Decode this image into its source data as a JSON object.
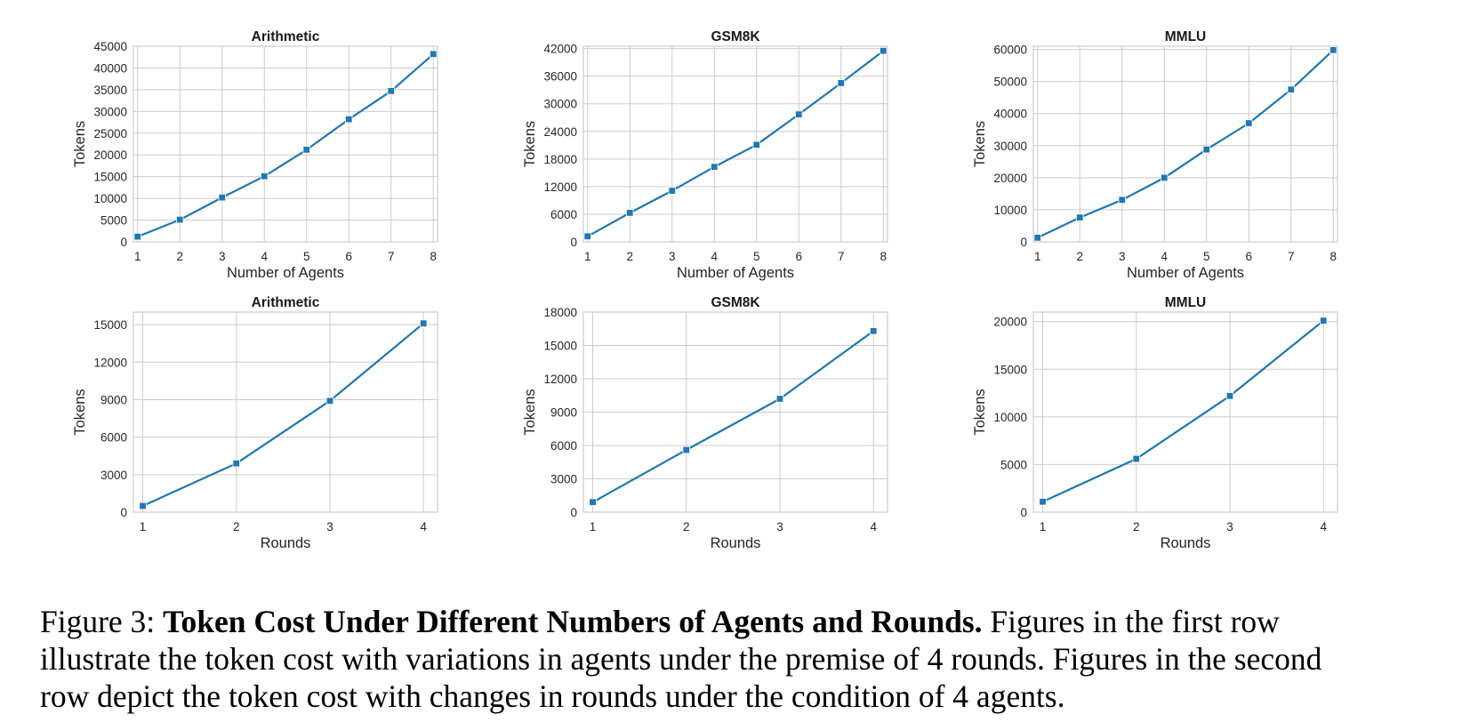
{
  "figure": {
    "caption": {
      "label": "Figure 3:",
      "title": "Token Cost Under Different Numbers of Agents and Rounds.",
      "line1_rest": "Figures in the first row",
      "line2": "illustrate the token cost with variations in agents under the premise of 4 rounds. Figures in the second",
      "line3": "row depict the token cost with changes in rounds under the condition of 4 agents."
    }
  },
  "chart_data": [
    {
      "type": "line",
      "title": "Arithmetic",
      "xlabel": "Number of Agents",
      "ylabel": "Tokens",
      "x": [
        1,
        2,
        3,
        4,
        5,
        6,
        7,
        8
      ],
      "values": [
        1200,
        5100,
        10200,
        15100,
        21200,
        28200,
        34700,
        43200
      ],
      "xlim": [
        0.9,
        8.1
      ],
      "ylim": [
        0,
        45000
      ],
      "yticks": [
        0,
        5000,
        10000,
        15000,
        20000,
        25000,
        30000,
        35000,
        40000,
        45000
      ],
      "xticks": [
        1,
        2,
        3,
        4,
        5,
        6,
        7,
        8
      ],
      "grid": true,
      "color": "#1f77b4"
    },
    {
      "type": "line",
      "title": "GSM8K",
      "xlabel": "Number of Agents",
      "ylabel": "Tokens",
      "x": [
        1,
        2,
        3,
        4,
        5,
        6,
        7,
        8
      ],
      "values": [
        1200,
        6300,
        11100,
        16300,
        21100,
        27700,
        34500,
        41500
      ],
      "xlim": [
        0.9,
        8.1
      ],
      "ylim": [
        0,
        42500
      ],
      "yticks": [
        0,
        6000,
        12000,
        18000,
        24000,
        30000,
        36000,
        42000
      ],
      "xticks": [
        1,
        2,
        3,
        4,
        5,
        6,
        7,
        8
      ],
      "grid": true,
      "color": "#1f77b4"
    },
    {
      "type": "line",
      "title": "MMLU",
      "xlabel": "Number of Agents",
      "ylabel": "Tokens",
      "x": [
        1,
        2,
        3,
        4,
        5,
        6,
        7,
        8
      ],
      "values": [
        1300,
        7600,
        13100,
        20000,
        28800,
        37000,
        47500,
        59800
      ],
      "xlim": [
        0.9,
        8.1
      ],
      "ylim": [
        0,
        61000
      ],
      "yticks": [
        0,
        10000,
        20000,
        30000,
        40000,
        50000,
        60000
      ],
      "xticks": [
        1,
        2,
        3,
        4,
        5,
        6,
        7,
        8
      ],
      "grid": true,
      "color": "#1f77b4"
    },
    {
      "type": "line",
      "title": "Arithmetic",
      "xlabel": "Rounds",
      "ylabel": "Tokens",
      "x": [
        1,
        2,
        3,
        4
      ],
      "values": [
        500,
        3900,
        8900,
        15100
      ],
      "xlim": [
        0.9,
        4.15
      ],
      "ylim": [
        0,
        16000
      ],
      "yticks": [
        0,
        3000,
        6000,
        9000,
        12000,
        15000
      ],
      "xticks": [
        1,
        2,
        3,
        4
      ],
      "grid": true,
      "color": "#1f77b4"
    },
    {
      "type": "line",
      "title": "GSM8K",
      "xlabel": "Rounds",
      "ylabel": "Tokens",
      "x": [
        1,
        2,
        3,
        4
      ],
      "values": [
        900,
        5600,
        10200,
        16300
      ],
      "xlim": [
        0.9,
        4.15
      ],
      "ylim": [
        0,
        18000
      ],
      "yticks": [
        0,
        3000,
        6000,
        9000,
        12000,
        15000,
        18000
      ],
      "xticks": [
        1,
        2,
        3,
        4
      ],
      "grid": true,
      "color": "#1f77b4"
    },
    {
      "type": "line",
      "title": "MMLU",
      "xlabel": "Rounds",
      "ylabel": "Tokens",
      "x": [
        1,
        2,
        3,
        4
      ],
      "values": [
        1100,
        5600,
        12200,
        20100
      ],
      "xlim": [
        0.9,
        4.15
      ],
      "ylim": [
        0,
        21000
      ],
      "yticks": [
        0,
        5000,
        10000,
        15000,
        20000
      ],
      "xticks": [
        1,
        2,
        3,
        4
      ],
      "grid": true,
      "color": "#1f77b4"
    }
  ]
}
